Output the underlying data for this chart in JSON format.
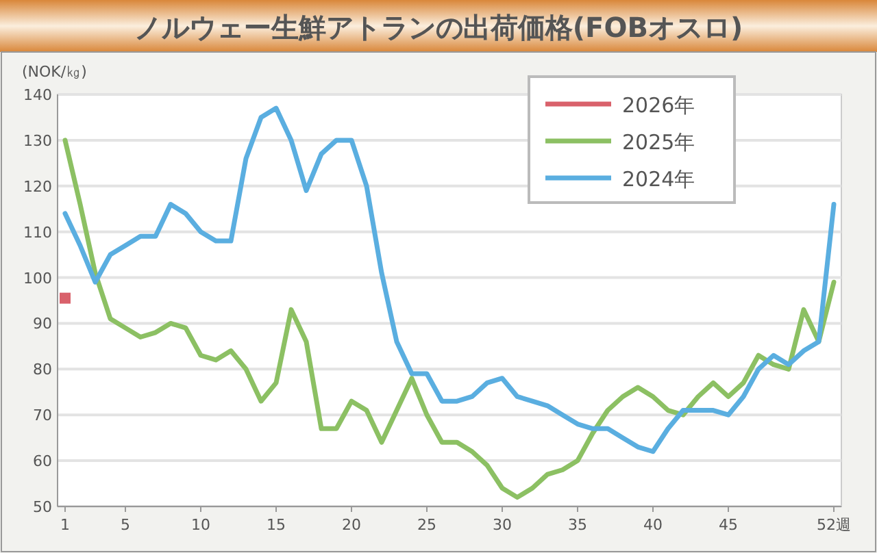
{
  "chart_data": {
    "type": "line",
    "title": "ノルウェー生鮮アトランの出荷価格(FOBオスロ)",
    "ylabel": "(NOK/㎏)",
    "x": [
      1,
      2,
      3,
      4,
      5,
      6,
      7,
      8,
      9,
      10,
      11,
      12,
      13,
      14,
      15,
      16,
      17,
      18,
      19,
      20,
      21,
      22,
      23,
      24,
      25,
      26,
      27,
      28,
      29,
      30,
      31,
      32,
      33,
      34,
      35,
      36,
      37,
      38,
      39,
      40,
      41,
      42,
      43,
      44,
      45,
      46,
      47,
      48,
      49,
      50,
      51,
      52
    ],
    "series": [
      {
        "name": "2026年",
        "color": "#d9616b",
        "marker": "square",
        "x": [
          1
        ],
        "values": [
          95.5
        ]
      },
      {
        "name": "2025年",
        "color": "#8cc063",
        "marker": "none",
        "values": [
          130,
          116,
          101,
          91,
          89,
          87,
          88,
          90,
          89,
          83,
          82,
          84,
          80,
          73,
          77,
          93,
          86,
          67,
          67,
          73,
          71,
          64,
          71,
          78,
          70,
          64,
          64,
          62,
          59,
          54,
          52,
          54,
          57,
          58,
          60,
          66,
          71,
          74,
          76,
          74,
          71,
          70,
          74,
          77,
          74,
          77,
          83,
          81,
          80,
          93,
          86,
          99
        ]
      },
      {
        "name": "2024年",
        "color": "#5aaee0",
        "marker": "none",
        "values": [
          114,
          107,
          99,
          105,
          107,
          109,
          109,
          116,
          114,
          110,
          108,
          108,
          126,
          135,
          137,
          130,
          119,
          127,
          130,
          130,
          120,
          101,
          86,
          79,
          79,
          73,
          73,
          74,
          77,
          78,
          74,
          73,
          72,
          70,
          68,
          67,
          67,
          65,
          63,
          62,
          67,
          71,
          71,
          71,
          70,
          74,
          80,
          83,
          81,
          84,
          86,
          116
        ]
      }
    ],
    "xlim": [
      0.5,
      52.5
    ],
    "xticks": [
      1,
      5,
      10,
      15,
      20,
      25,
      30,
      35,
      40,
      45,
      {
        "value": 52,
        "label": "52週"
      }
    ],
    "ylim": [
      50,
      140
    ],
    "yticks": [
      50,
      60,
      70,
      80,
      90,
      100,
      110,
      120,
      130,
      140
    ],
    "grid": "y",
    "legend": "top right",
    "line_style": "solid"
  }
}
